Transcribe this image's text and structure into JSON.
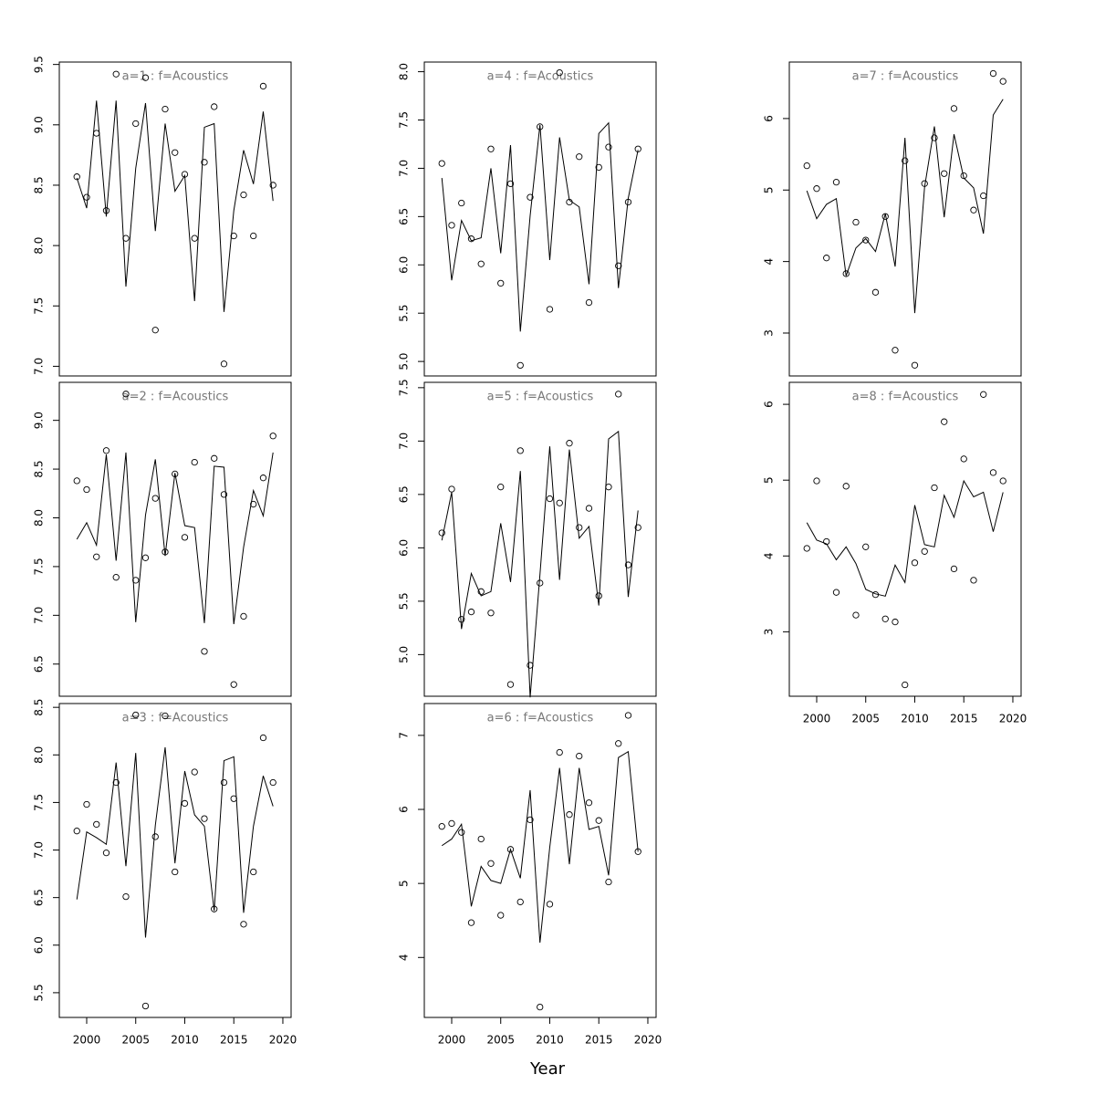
{
  "x_label": "Year",
  "chart_data": [
    {
      "type": "scatter",
      "title": "a=1  :  f=Acoustics",
      "x": [
        1999,
        2000,
        2001,
        2002,
        2003,
        2004,
        2005,
        2006,
        2007,
        2008,
        2009,
        2010,
        2011,
        2012,
        2013,
        2014,
        2015,
        2016,
        2017,
        2018,
        2019
      ],
      "series": [
        {
          "marker": "circle",
          "color": "#000000",
          "values": [
            8.57,
            8.4,
            8.93,
            8.29,
            9.42,
            8.06,
            9.01,
            9.39,
            7.3,
            9.13,
            8.77,
            8.59,
            8.06,
            8.69,
            9.15,
            7.02,
            8.08,
            8.42,
            8.08,
            9.32,
            8.5
          ]
        },
        {
          "marker": "line",
          "color": "#000000",
          "values": [
            8.56,
            8.31,
            9.2,
            8.24,
            9.2,
            7.66,
            8.64,
            9.18,
            8.12,
            9.01,
            8.45,
            8.58,
            7.54,
            8.98,
            9.01,
            7.45,
            8.29,
            8.79,
            8.51,
            9.11,
            8.37
          ]
        }
      ],
      "xlim": [
        1997.21,
        2020.84
      ],
      "ylim": [
        6.92,
        9.52
      ],
      "yticks": [
        {
          "value": 7,
          "label": "7.0"
        },
        7.5,
        {
          "value": 8,
          "label": "8.0"
        },
        8.5,
        {
          "value": 9,
          "label": "9.0"
        },
        9.5
      ]
    },
    {
      "type": "scatter",
      "title": "a=2  :  f=Acoustics",
      "x": [
        1999,
        2000,
        2001,
        2002,
        2003,
        2004,
        2005,
        2006,
        2007,
        2008,
        2009,
        2010,
        2011,
        2012,
        2013,
        2014,
        2015,
        2016,
        2017,
        2018,
        2019
      ],
      "series": [
        {
          "marker": "circle",
          "color": "#000000",
          "values": [
            8.38,
            8.29,
            7.6,
            8.69,
            7.39,
            9.27,
            7.36,
            7.59,
            8.2,
            7.65,
            8.45,
            7.8,
            8.57,
            6.63,
            8.61,
            8.24,
            6.29,
            6.99,
            8.14,
            8.41,
            8.84
          ]
        },
        {
          "marker": "line",
          "color": "#000000",
          "values": [
            7.78,
            7.95,
            7.72,
            8.65,
            7.56,
            8.67,
            6.93,
            8.03,
            8.6,
            7.61,
            8.46,
            7.92,
            7.9,
            6.92,
            8.53,
            8.52,
            6.91,
            7.7,
            8.28,
            8.02,
            8.67
          ]
        }
      ],
      "xlim": [
        1997.21,
        2020.84
      ],
      "ylim": [
        6.17,
        9.39
      ],
      "yticks": [
        6.5,
        {
          "value": 7,
          "label": "7.0"
        },
        7.5,
        {
          "value": 8,
          "label": "8.0"
        },
        8.5,
        {
          "value": 9,
          "label": "9.0"
        }
      ]
    },
    {
      "type": "scatter",
      "title": "a=3  :  f=Acoustics",
      "x": [
        1999,
        2000,
        2001,
        2002,
        2003,
        2004,
        2005,
        2006,
        2007,
        2008,
        2009,
        2010,
        2011,
        2012,
        2013,
        2014,
        2015,
        2016,
        2017,
        2018,
        2019
      ],
      "series": [
        {
          "marker": "circle",
          "color": "#000000",
          "values": [
            7.2,
            7.48,
            7.27,
            6.97,
            7.71,
            6.51,
            8.42,
            5.36,
            7.14,
            8.41,
            6.77,
            7.49,
            7.82,
            7.33,
            6.38,
            7.71,
            7.54,
            6.22,
            6.77,
            8.18,
            7.71
          ]
        },
        {
          "marker": "line",
          "color": "#000000",
          "values": [
            6.48,
            7.19,
            7.13,
            7.06,
            7.92,
            6.83,
            8.02,
            6.08,
            7.26,
            8.08,
            6.86,
            7.83,
            7.37,
            7.25,
            6.36,
            7.94,
            7.98,
            6.34,
            7.25,
            7.78,
            7.46
          ]
        }
      ],
      "xlim": [
        1997.21,
        2020.84
      ],
      "ylim": [
        5.24,
        8.54
      ],
      "yticks": [
        5.5,
        {
          "value": 6,
          "label": "6.0"
        },
        6.5,
        {
          "value": 7,
          "label": "7.0"
        },
        7.5,
        {
          "value": 8,
          "label": "8.0"
        },
        8.5
      ],
      "xticks": [
        2000,
        2005,
        2010,
        2015,
        2020
      ]
    },
    {
      "type": "scatter",
      "title": "a=4  :  f=Acoustics",
      "x": [
        1999,
        2000,
        2001,
        2002,
        2003,
        2004,
        2005,
        2006,
        2007,
        2008,
        2009,
        2010,
        2011,
        2012,
        2013,
        2014,
        2015,
        2016,
        2017,
        2018,
        2019
      ],
      "series": [
        {
          "marker": "circle",
          "color": "#000000",
          "values": [
            7.05,
            6.41,
            6.64,
            6.27,
            6.01,
            7.2,
            5.81,
            6.84,
            4.96,
            6.7,
            7.43,
            5.54,
            7.99,
            6.65,
            7.12,
            5.61,
            7.01,
            7.22,
            5.99,
            6.65,
            7.2
          ]
        },
        {
          "marker": "line",
          "color": "#000000",
          "values": [
            6.9,
            5.84,
            6.46,
            6.25,
            6.28,
            7.0,
            6.12,
            7.24,
            5.31,
            6.51,
            7.45,
            6.05,
            7.32,
            6.67,
            6.6,
            5.8,
            7.36,
            7.47,
            5.76,
            6.69,
            7.19
          ]
        }
      ],
      "xlim": [
        1997.21,
        2020.84
      ],
      "ylim": [
        4.85,
        8.1
      ],
      "yticks": [
        {
          "value": 5,
          "label": "5.0"
        },
        5.5,
        {
          "value": 6,
          "label": "6.0"
        },
        6.5,
        {
          "value": 7,
          "label": "7.0"
        },
        7.5,
        {
          "value": 8,
          "label": "8.0"
        }
      ]
    },
    {
      "type": "scatter",
      "title": "a=5  :  f=Acoustics",
      "x": [
        1999,
        2000,
        2001,
        2002,
        2003,
        2004,
        2005,
        2006,
        2007,
        2008,
        2009,
        2010,
        2011,
        2012,
        2013,
        2014,
        2015,
        2016,
        2017,
        2018,
        2019
      ],
      "series": [
        {
          "marker": "circle",
          "color": "#000000",
          "values": [
            6.14,
            6.55,
            5.33,
            5.4,
            5.59,
            5.39,
            6.57,
            4.72,
            6.91,
            4.9,
            5.67,
            6.46,
            6.42,
            6.98,
            6.19,
            6.37,
            5.55,
            6.57,
            7.44,
            5.84,
            6.19
          ]
        },
        {
          "marker": "line",
          "color": "#000000",
          "values": [
            6.07,
            6.52,
            5.24,
            5.76,
            5.55,
            5.59,
            6.23,
            5.68,
            6.72,
            4.6,
            5.75,
            6.95,
            5.7,
            6.92,
            6.09,
            6.2,
            5.46,
            7.02,
            7.09,
            5.54,
            6.35
          ]
        }
      ],
      "xlim": [
        1997.21,
        2020.84
      ],
      "ylim": [
        4.61,
        7.55
      ],
      "yticks": [
        {
          "value": 5,
          "label": "5.0"
        },
        5.5,
        {
          "value": 6,
          "label": "6.0"
        },
        6.5,
        {
          "value": 7,
          "label": "7.0"
        },
        7.5
      ]
    },
    {
      "type": "scatter",
      "title": "a=6  :  f=Acoustics",
      "x": [
        1999,
        2000,
        2001,
        2002,
        2003,
        2004,
        2005,
        2006,
        2007,
        2008,
        2009,
        2010,
        2011,
        2012,
        2013,
        2014,
        2015,
        2016,
        2017,
        2018,
        2019
      ],
      "series": [
        {
          "marker": "circle",
          "color": "#000000",
          "values": [
            5.77,
            5.81,
            5.69,
            4.47,
            5.6,
            5.27,
            4.57,
            5.46,
            4.75,
            5.86,
            3.33,
            4.72,
            6.77,
            5.93,
            6.72,
            6.09,
            5.85,
            5.02,
            6.89,
            7.27,
            5.43
          ]
        },
        {
          "marker": "line",
          "color": "#000000",
          "values": [
            5.51,
            5.6,
            5.8,
            4.69,
            5.23,
            5.04,
            5.0,
            5.46,
            5.07,
            6.26,
            4.2,
            5.49,
            6.56,
            5.26,
            6.56,
            5.73,
            5.77,
            5.11,
            6.7,
            6.78,
            5.43
          ]
        }
      ],
      "xlim": [
        1997.21,
        2020.84
      ],
      "ylim": [
        3.19,
        7.43
      ],
      "yticks": [
        4,
        5,
        6,
        7
      ],
      "xticks": [
        2000,
        2005,
        2010,
        2015,
        2020
      ]
    },
    {
      "type": "scatter",
      "title": "a=7  :  f=Acoustics",
      "x": [
        1999,
        2000,
        2001,
        2002,
        2003,
        2004,
        2005,
        2006,
        2007,
        2008,
        2009,
        2010,
        2011,
        2012,
        2013,
        2014,
        2015,
        2016,
        2017,
        2018,
        2019
      ],
      "series": [
        {
          "marker": "circle",
          "color": "#000000",
          "values": [
            5.34,
            5.02,
            4.05,
            5.11,
            3.83,
            4.55,
            4.3,
            3.57,
            4.63,
            2.76,
            5.41,
            2.55,
            5.09,
            5.73,
            5.23,
            6.14,
            5.2,
            4.72,
            4.92,
            6.63,
            6.52
          ]
        },
        {
          "marker": "line",
          "color": "#000000",
          "values": [
            4.99,
            4.6,
            4.8,
            4.88,
            3.8,
            4.19,
            4.32,
            4.14,
            4.67,
            3.93,
            5.73,
            3.28,
            5.04,
            5.89,
            4.62,
            5.78,
            5.17,
            5.03,
            4.39,
            6.05,
            6.27
          ]
        }
      ],
      "xlim": [
        1997.21,
        2020.84
      ],
      "ylim": [
        2.4,
        6.79
      ],
      "yticks": [
        3,
        4,
        5,
        6
      ]
    },
    {
      "type": "scatter",
      "title": "a=8  :  f=Acoustics",
      "x": [
        1999,
        2000,
        2001,
        2002,
        2003,
        2004,
        2005,
        2006,
        2007,
        2008,
        2009,
        2010,
        2011,
        2012,
        2013,
        2014,
        2015,
        2016,
        2017,
        2018,
        2019
      ],
      "series": [
        {
          "marker": "circle",
          "color": "#000000",
          "values": [
            4.1,
            4.99,
            4.19,
            3.52,
            4.92,
            3.22,
            4.12,
            3.49,
            3.17,
            3.13,
            2.3,
            3.91,
            4.06,
            4.9,
            5.77,
            3.83,
            5.28,
            3.68,
            6.13,
            5.1,
            4.99
          ]
        },
        {
          "marker": "line",
          "color": "#000000",
          "values": [
            4.44,
            4.21,
            4.16,
            3.95,
            4.12,
            3.9,
            3.56,
            3.5,
            3.47,
            3.88,
            3.65,
            4.67,
            4.15,
            4.12,
            4.8,
            4.51,
            4.99,
            4.78,
            4.84,
            4.32,
            4.84
          ]
        }
      ],
      "xlim": [
        1997.21,
        2020.84
      ],
      "ylim": [
        2.15,
        6.29
      ],
      "yticks": [
        3,
        4,
        5,
        6
      ],
      "xticks": [
        2000,
        2005,
        2010,
        2015,
        2020
      ]
    }
  ]
}
